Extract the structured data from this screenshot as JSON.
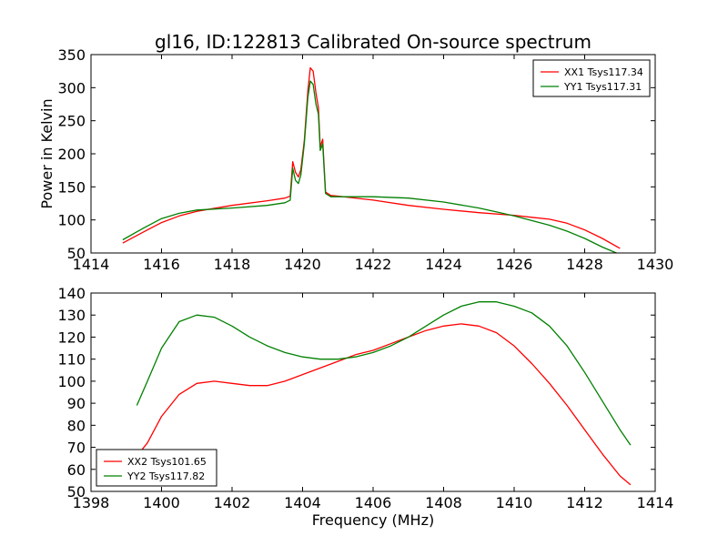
{
  "figure_title": "gl16, ID:122813 Calibrated On-source spectrum",
  "chart_data": [
    {
      "type": "line",
      "title": "gl16, ID:122813 Calibrated On-source spectrum",
      "xlabel": "",
      "ylabel": "Power in Kelvin",
      "xlim": [
        1414,
        1430
      ],
      "ylim": [
        50,
        350
      ],
      "xticks": [
        "1414",
        "1416",
        "1418",
        "1420",
        "1422",
        "1424",
        "1426",
        "1428",
        "1430"
      ],
      "yticks": [
        "50",
        "100",
        "150",
        "200",
        "250",
        "300",
        "350"
      ],
      "legend_position": "top-right",
      "series": [
        {
          "name": "XX1 Tsys117.34",
          "color": "#ff0000",
          "x": [
            1414.9,
            1415.5,
            1416.0,
            1416.5,
            1417.0,
            1418.0,
            1419.0,
            1419.5,
            1419.65,
            1419.72,
            1419.8,
            1419.88,
            1419.95,
            1420.05,
            1420.15,
            1420.22,
            1420.3,
            1420.38,
            1420.45,
            1420.5,
            1420.57,
            1420.65,
            1420.8,
            1421.0,
            1422.0,
            1423.0,
            1424.0,
            1425.0,
            1426.0,
            1426.5,
            1427.0,
            1427.5,
            1428.0,
            1428.5,
            1429.0
          ],
          "y": [
            65,
            82,
            96,
            106,
            113,
            122,
            129,
            133,
            136,
            188,
            172,
            165,
            176,
            220,
            295,
            330,
            325,
            292,
            270,
            210,
            222,
            142,
            137,
            136,
            130,
            122,
            116,
            111,
            107,
            104,
            101,
            95,
            85,
            72,
            57
          ]
        },
        {
          "name": "YY1 Tsys117.31",
          "color": "#008000",
          "x": [
            1414.9,
            1415.5,
            1416.0,
            1416.5,
            1417.0,
            1418.0,
            1419.0,
            1419.5,
            1419.65,
            1419.72,
            1419.8,
            1419.88,
            1419.95,
            1420.05,
            1420.15,
            1420.22,
            1420.3,
            1420.38,
            1420.45,
            1420.5,
            1420.57,
            1420.65,
            1420.8,
            1421.0,
            1422.0,
            1423.0,
            1424.0,
            1425.0,
            1425.5,
            1426.0,
            1426.5,
            1427.0,
            1427.5,
            1428.0,
            1428.5,
            1428.9
          ],
          "y": [
            70,
            88,
            102,
            110,
            115,
            118,
            122,
            126,
            130,
            178,
            160,
            155,
            168,
            215,
            285,
            310,
            305,
            275,
            260,
            205,
            215,
            140,
            135,
            135,
            135,
            133,
            127,
            118,
            112,
            106,
            99,
            92,
            83,
            72,
            59,
            50
          ]
        }
      ]
    },
    {
      "type": "line",
      "title": "",
      "xlabel": "Frequency (MHz)",
      "ylabel": "",
      "xlim": [
        1398,
        1414
      ],
      "ylim": [
        50,
        140
      ],
      "xticks": [
        "1398",
        "1400",
        "1402",
        "1404",
        "1406",
        "1408",
        "1410",
        "1412",
        "1414"
      ],
      "yticks": [
        "50",
        "60",
        "70",
        "80",
        "90",
        "100",
        "110",
        "120",
        "130",
        "140"
      ],
      "legend_position": "bottom-left",
      "series": [
        {
          "name": "XX2 Tsys101.65",
          "color": "#ff0000",
          "x": [
            1399.3,
            1399.6,
            1400.0,
            1400.5,
            1401.0,
            1401.5,
            1402.0,
            1402.5,
            1403.0,
            1403.5,
            1404.0,
            1404.5,
            1405.0,
            1405.5,
            1406.0,
            1406.5,
            1407.0,
            1407.5,
            1408.0,
            1408.5,
            1409.0,
            1409.5,
            1410.0,
            1410.5,
            1411.0,
            1411.5,
            1412.0,
            1412.5,
            1413.0,
            1413.3
          ],
          "y": [
            66,
            72,
            84,
            94,
            99,
            100,
            99,
            98,
            98,
            100,
            103,
            106,
            109,
            112,
            114,
            117,
            120,
            123,
            125,
            126,
            125,
            122,
            116,
            108,
            99,
            89,
            78,
            67,
            57,
            53
          ]
        },
        {
          "name": "YY2 Tsys117.82",
          "color": "#008000",
          "x": [
            1399.3,
            1399.6,
            1400.0,
            1400.5,
            1401.0,
            1401.5,
            1402.0,
            1402.5,
            1403.0,
            1403.5,
            1404.0,
            1404.5,
            1405.0,
            1405.5,
            1406.0,
            1406.5,
            1407.0,
            1407.5,
            1408.0,
            1408.5,
            1409.0,
            1409.5,
            1410.0,
            1410.5,
            1411.0,
            1411.5,
            1412.0,
            1412.5,
            1413.0,
            1413.3
          ],
          "y": [
            89,
            100,
            115,
            127,
            130,
            129,
            125,
            120,
            116,
            113,
            111,
            110,
            110,
            111,
            113,
            116,
            120,
            125,
            130,
            134,
            136,
            136,
            134,
            131,
            125,
            116,
            104,
            91,
            78,
            71
          ]
        }
      ]
    }
  ]
}
